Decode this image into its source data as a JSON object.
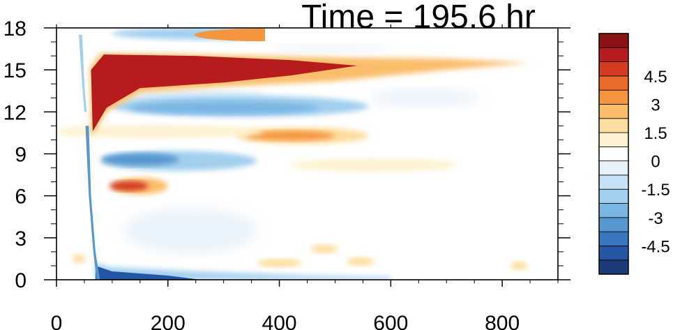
{
  "chart_data": {
    "type": "heatmap",
    "title": "Time = 195.6 hr",
    "xlabel": "",
    "ylabel": "",
    "xlim": [
      0,
      900
    ],
    "ylim": [
      0,
      18
    ],
    "x_ticks": [
      0,
      200,
      400,
      600,
      800
    ],
    "x_tick_labels": [
      "0",
      "200",
      "400",
      "600",
      "800"
    ],
    "y_ticks": [
      0,
      3,
      6,
      9,
      12,
      15,
      18
    ],
    "y_tick_labels": [
      "0",
      "3",
      "6",
      "9",
      "12",
      "15",
      "18"
    ],
    "colorbar": {
      "levels": [
        -5.25,
        -4.5,
        -3.75,
        -3,
        -2.25,
        -1.5,
        -0.75,
        0,
        0.75,
        1.5,
        2.25,
        3,
        3.75,
        4.5,
        5.25
      ],
      "tick_values": [
        -4.5,
        -3,
        -1.5,
        0,
        1.5,
        3,
        4.5
      ],
      "tick_labels": [
        "-4.5",
        "-3",
        "-1.5",
        "0",
        "1.5",
        "3",
        "4.5"
      ],
      "colors": [
        "#1a3a7a",
        "#2456a4",
        "#3a76bd",
        "#5797cf",
        "#7ab6e1",
        "#a1cfee",
        "#c6e2f5",
        "#e6f2fb",
        "#ffffff",
        "#fdf3d2",
        "#fddd9d",
        "#fbbd6a",
        "#f5963f",
        "#e96a2a",
        "#d43b22",
        "#b71c1c",
        "#8a1313"
      ]
    },
    "features": [
      {
        "name": "upper positive band",
        "x": [
          60,
          850
        ],
        "y_center": 15.0,
        "value": 5.5
      },
      {
        "name": "negative band",
        "x": [
          110,
          560
        ],
        "y_center": 12.4,
        "value": -2.2
      },
      {
        "name": "positive band",
        "x": [
          330,
          560
        ],
        "y_center": 10.3,
        "value": 3.0
      },
      {
        "name": "negative band",
        "x": [
          90,
          360
        ],
        "y_center": 8.5,
        "value": -3.5
      },
      {
        "name": "positive blob",
        "x": [
          90,
          200
        ],
        "y_center": 6.7,
        "value": 5.0
      },
      {
        "name": "weak positive band",
        "x": [
          420,
          720
        ],
        "y_center": 8.2,
        "value": 1.2
      },
      {
        "name": "negative surface band",
        "x": [
          70,
          600
        ],
        "y_center": 0.4,
        "value": -5.0
      },
      {
        "name": "upper negative patch",
        "x": [
          200,
          370
        ],
        "y_center": 17.6,
        "value": -2.0
      },
      {
        "name": "upper positive patch",
        "x": [
          350,
          375
        ],
        "y_center": 17.5,
        "value": 3.0
      }
    ]
  }
}
